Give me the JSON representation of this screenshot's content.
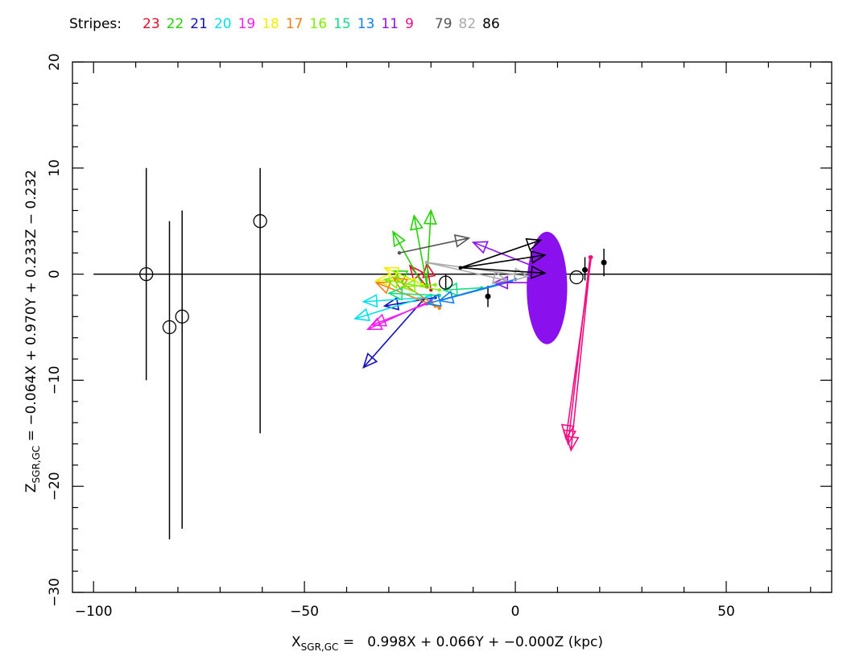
{
  "legend": {
    "lead": "Stripes:",
    "stripes": [
      {
        "label": "23",
        "color": "#e0102a"
      },
      {
        "label": "22",
        "color": "#22d400"
      },
      {
        "label": "21",
        "color": "#1010c0"
      },
      {
        "label": "20",
        "color": "#00e0f0"
      },
      {
        "label": "19",
        "color": "#f020f0"
      },
      {
        "label": "18",
        "color": "#f0f000"
      },
      {
        "label": "17",
        "color": "#f08010"
      },
      {
        "label": "16",
        "color": "#80f000"
      },
      {
        "label": "15",
        "color": "#10e080"
      },
      {
        "label": "13",
        "color": "#1080f0"
      },
      {
        "label": "11",
        "color": "#9010f0"
      },
      {
        "label": "9",
        "color": "#f01080"
      },
      {
        "label": "79",
        "color": "#555555"
      },
      {
        "label": "82",
        "color": "#aaaaaa"
      },
      {
        "label": "86",
        "color": "#000000"
      }
    ]
  },
  "chart_data": {
    "type": "scatter",
    "xlabel": {
      "sym": "X",
      "sub": "SGR,GC",
      "rest": " =   0.998X + 0.066Y + −0.000Z (kpc)"
    },
    "ylabel": {
      "sym": "Z",
      "sub": "SGR,GC",
      "rest": " = −0.064X + 0.970Y + 0.233Z − 0.232"
    },
    "xlim": [
      -105,
      75
    ],
    "ylim": [
      -30,
      20
    ],
    "x_ticks": [
      {
        "v": -100,
        "label": "−100"
      },
      {
        "v": -50,
        "label": "−50"
      },
      {
        "v": 0,
        "label": "0"
      },
      {
        "v": 50,
        "label": "50"
      }
    ],
    "y_ticks": [
      {
        "v": -30,
        "label": "−30"
      },
      {
        "v": -20,
        "label": "−20"
      },
      {
        "v": -10,
        "label": "−10"
      },
      {
        "v": 0,
        "label": "0"
      },
      {
        "v": 10,
        "label": "10"
      },
      {
        "v": 20,
        "label": "20"
      }
    ],
    "reference_line": {
      "x": [
        -100,
        75
      ],
      "y": 0
    },
    "open_points": [
      {
        "x": -87.5,
        "y": 0,
        "ylo": -10,
        "yhi": 10
      },
      {
        "x": -82,
        "y": -5,
        "ylo": -25,
        "yhi": 5
      },
      {
        "x": -79,
        "y": -4,
        "ylo": -24,
        "yhi": 6
      },
      {
        "x": -60.5,
        "y": 5,
        "ylo": -15,
        "yhi": 10
      },
      {
        "x": -16.5,
        "y": -0.8,
        "ylo": -1.6,
        "yhi": 0
      },
      {
        "x": 14.5,
        "y": -0.3,
        "ylo": -0.3,
        "yhi": -0.3
      }
    ],
    "filled_points": [
      {
        "x": -6.5,
        "y": -2.1,
        "ylo": -3.1,
        "yhi": -1.1
      },
      {
        "x": 16.5,
        "y": 0.4,
        "ylo": -0.6,
        "yhi": 1.6
      },
      {
        "x": 21,
        "y": 1.1,
        "ylo": -0.2,
        "yhi": 2.4
      }
    ],
    "ellipse": {
      "cx": 7.5,
      "cy": -1.3,
      "rx": 4.8,
      "ry": 5.3,
      "color": "#8a10ee"
    },
    "arrows": [
      {
        "stripe": "23",
        "x1": -20,
        "y1": -1.5,
        "x2": -21,
        "y2": 1.0
      },
      {
        "stripe": "23",
        "x1": -21,
        "y1": -1.2,
        "x2": -25,
        "y2": 0.8
      },
      {
        "stripe": "22",
        "x1": -21,
        "y1": -1.0,
        "x2": -24,
        "y2": 5.5
      },
      {
        "stripe": "22",
        "x1": -21,
        "y1": -1.0,
        "x2": -20,
        "y2": 6.0
      },
      {
        "stripe": "22",
        "x1": -22,
        "y1": -1.0,
        "x2": -29,
        "y2": 4.0
      },
      {
        "stripe": "22",
        "x1": -22,
        "y1": -1.0,
        "x2": -29,
        "y2": 0.3
      },
      {
        "stripe": "21",
        "x1": -22,
        "y1": -2.5,
        "x2": -36,
        "y2": -8.8
      },
      {
        "stripe": "21",
        "x1": -19,
        "y1": -2.2,
        "x2": -31,
        "y2": -3.0
      },
      {
        "stripe": "20",
        "x1": -20,
        "y1": -2.0,
        "x2": -38,
        "y2": -4.2
      },
      {
        "stripe": "20",
        "x1": -21,
        "y1": -2.2,
        "x2": -36,
        "y2": -2.6
      },
      {
        "stripe": "19",
        "x1": -20,
        "y1": -2.5,
        "x2": -35,
        "y2": -5.2
      },
      {
        "stripe": "19",
        "x1": -21,
        "y1": -2.8,
        "x2": -34,
        "y2": -4.8
      },
      {
        "stripe": "18",
        "x1": -22,
        "y1": -1.0,
        "x2": -31,
        "y2": 0.6
      },
      {
        "stripe": "18",
        "x1": -24,
        "y1": -0.5,
        "x2": -33,
        "y2": -0.6
      },
      {
        "stripe": "17",
        "x1": -18,
        "y1": -3.2,
        "x2": -29,
        "y2": -0.3
      },
      {
        "stripe": "17",
        "x1": -19,
        "y1": -3.0,
        "x2": -33,
        "y2": -0.8
      },
      {
        "stripe": "16",
        "x1": -18,
        "y1": -1.5,
        "x2": -31,
        "y2": -0.5
      },
      {
        "stripe": "16",
        "x1": -19,
        "y1": -1.0,
        "x2": -27,
        "y2": -1.2
      },
      {
        "stripe": "15",
        "x1": -8,
        "y1": -1.3,
        "x2": -17,
        "y2": -1.5
      },
      {
        "stripe": "15",
        "x1": -18,
        "y1": -2.0,
        "x2": -30,
        "y2": -1.8
      },
      {
        "stripe": "13",
        "x1": 0,
        "y1": -0.5,
        "x2": -21,
        "y2": -2.8
      },
      {
        "stripe": "13",
        "x1": -1,
        "y1": -0.7,
        "x2": -18,
        "y2": -2.5
      },
      {
        "stripe": "11",
        "x1": 9,
        "y1": 0,
        "x2": -10,
        "y2": 3.0
      },
      {
        "stripe": "11",
        "x1": 4,
        "y1": -0.8,
        "x2": -5,
        "y2": -0.8
      },
      {
        "stripe": "9",
        "x1": 17.7,
        "y1": 1.6,
        "x2": 12.5,
        "y2": -16.0
      },
      {
        "stripe": "9",
        "x1": 17.9,
        "y1": 1.6,
        "x2": 13.2,
        "y2": -16.6
      },
      {
        "stripe": "9",
        "x1": 18.0,
        "y1": 1.6,
        "x2": 12.0,
        "y2": -15.5
      },
      {
        "stripe": "79",
        "x1": -27.5,
        "y1": 2.0,
        "x2": -11,
        "y2": 3.4
      },
      {
        "stripe": "82",
        "x1": -21,
        "y1": 1.1,
        "x2": 3,
        "y2": -0.2
      },
      {
        "stripe": "82",
        "x1": -21,
        "y1": 1.1,
        "x2": -2,
        "y2": -0.6
      },
      {
        "stripe": "86",
        "x1": -13,
        "y1": 0.6,
        "x2": 6,
        "y2": 3.2
      },
      {
        "stripe": "86",
        "x1": -13,
        "y1": 0.6,
        "x2": 7,
        "y2": 1.8
      },
      {
        "stripe": "86",
        "x1": -13,
        "y1": 0.6,
        "x2": 7,
        "y2": 0.1
      }
    ]
  }
}
